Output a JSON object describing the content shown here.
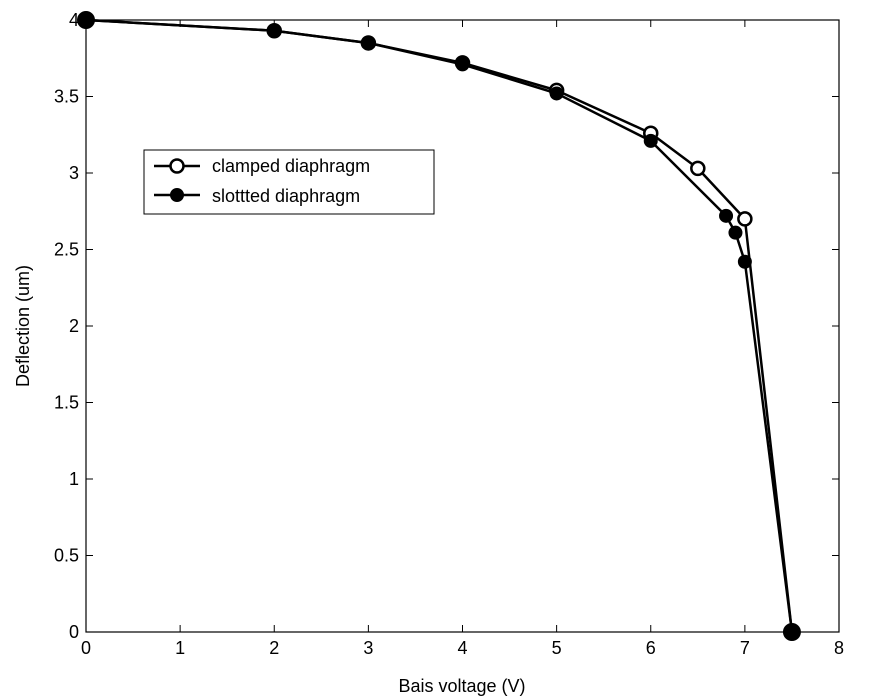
{
  "chart_data": {
    "type": "line",
    "xlabel": "Bais voltage (V)",
    "ylabel": "Deflection (um)",
    "xlim": [
      0,
      8
    ],
    "ylim": [
      0,
      4
    ],
    "xticks": [
      "0",
      "1",
      "2",
      "3",
      "4",
      "5",
      "6",
      "7",
      "8"
    ],
    "yticks": [
      "0",
      "0.5",
      "1",
      "1.5",
      "2",
      "2.5",
      "3",
      "3.5",
      "4"
    ],
    "grid": false,
    "legend_position": "upper-left",
    "series": [
      {
        "name": "clamped diaphragm",
        "marker": "open-circle",
        "x": [
          0,
          2,
          3,
          4,
          5,
          6,
          6.5,
          7,
          7.5
        ],
        "y": [
          4.0,
          3.93,
          3.85,
          3.72,
          3.54,
          3.26,
          3.03,
          2.7,
          0.0
        ]
      },
      {
        "name": "slottted diaphragm",
        "marker": "filled-circle",
        "x": [
          0,
          2,
          3,
          4,
          5,
          6,
          6.8,
          6.9,
          7.0,
          7.5
        ],
        "y": [
          4.0,
          3.93,
          3.85,
          3.71,
          3.52,
          3.21,
          2.72,
          2.61,
          2.42,
          0.0
        ]
      }
    ]
  },
  "colors": {
    "line": "#000000",
    "background": "#ffffff"
  }
}
